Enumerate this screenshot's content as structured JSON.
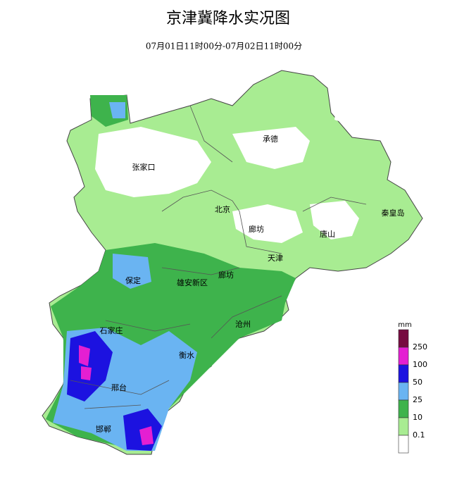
{
  "header": {
    "title": "京津冀降水实况图",
    "subtitle": "07月01日11时00分-07月02日11时00分"
  },
  "map": {
    "cities": [
      "承德",
      "张家口",
      "北京",
      "廊坊",
      "唐山",
      "秦皇岛",
      "天津",
      "保定",
      "雄安新区",
      "廊坊",
      "沧州",
      "石家庄",
      "衡水",
      "邢台",
      "邯郸"
    ]
  },
  "legend": {
    "unit": "mm",
    "labels": [
      250,
      100,
      50,
      25,
      10,
      0.1
    ],
    "colors": [
      "#760b40",
      "#e41fd2",
      "#1c12e0",
      "#6ab4f2",
      "#3eb34c",
      "#a8ec92",
      "#ffffff"
    ]
  }
}
